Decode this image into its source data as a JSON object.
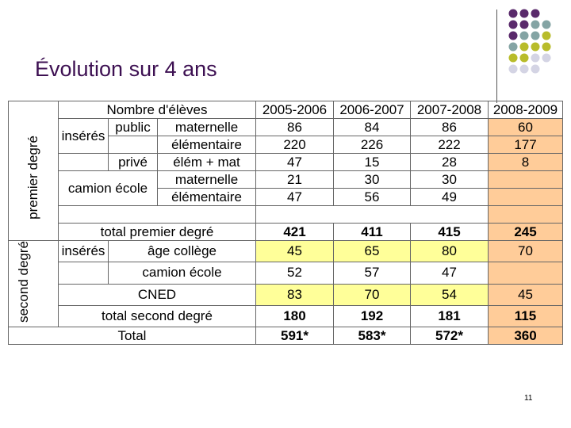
{
  "title": "Évolution sur 4 ans",
  "slide_number": "11",
  "table": {
    "header_label": "Nombre d'élèves",
    "years": [
      "2005-2006",
      "2006-2007",
      "2007-2008",
      "2008-2009"
    ],
    "section_premier": "premier degré",
    "section_second": "second degré",
    "inseres": "insérés",
    "public": "public",
    "prive": "privé",
    "camion_ecole": "camion école",
    "rows": {
      "public_maternelle": {
        "label": "maternelle",
        "values": [
          "86",
          "84",
          "86",
          "60"
        ]
      },
      "public_elementaire": {
        "label": "élémentaire",
        "values": [
          "220",
          "226",
          "222",
          "177"
        ]
      },
      "prive_elem_mat": {
        "label": "élém + mat",
        "values": [
          "47",
          "15",
          "28",
          "8"
        ]
      },
      "camion_maternelle": {
        "label": "maternelle",
        "values": [
          "21",
          "30",
          "30",
          ""
        ]
      },
      "camion_elementaire": {
        "label": "élémentaire",
        "values": [
          "47",
          "56",
          "49",
          ""
        ]
      },
      "total_premier": {
        "label": "total premier degré",
        "values": [
          "421",
          "411",
          "415",
          "245"
        ]
      },
      "age_college": {
        "label": "âge collège",
        "values": [
          "45",
          "65",
          "80",
          "70"
        ]
      },
      "second_camion": {
        "label": "camion école",
        "values": [
          "52",
          "57",
          "47",
          ""
        ]
      },
      "cned": {
        "label": "CNED",
        "values": [
          "83",
          "70",
          "54",
          "45"
        ]
      },
      "total_second": {
        "label": "total second degré",
        "values": [
          "180",
          "192",
          "181",
          "115"
        ]
      },
      "total": {
        "label": "Total",
        "values": [
          "591*",
          "583*",
          "572*",
          "360"
        ]
      }
    }
  },
  "colors": {
    "title": "#3d1052",
    "highlight_yellow": "#ffff99",
    "highlight_orange": "#ffcc99",
    "dot_purple": "#5a2a6b",
    "dot_teal": "#84a4a4",
    "dot_olive": "#b8bc2a",
    "dot_lavender": "#d4d4e4"
  }
}
